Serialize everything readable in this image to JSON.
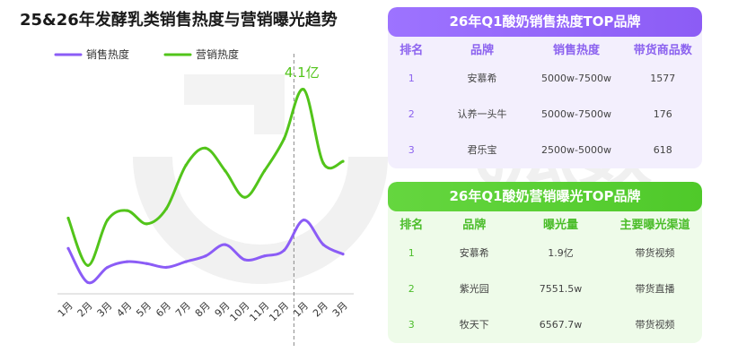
{
  "chart_data": {
    "type": "line",
    "title": "25&26年发酵乳类销售热度与营销曝光趋势",
    "categories": [
      "1月",
      "2月",
      "3月",
      "4月",
      "5月",
      "6月",
      "7月",
      "8月",
      "9月",
      "10月",
      "11月",
      "12月",
      "1月",
      "2月",
      "3月"
    ],
    "series": [
      {
        "name": "销售热度",
        "color": "#8b5cf6",
        "values": [
          24,
          6,
          14,
          17,
          16,
          14,
          17,
          20,
          26,
          18,
          20,
          23,
          39,
          26,
          21
        ]
      },
      {
        "name": "营销热度",
        "color": "#52c41a",
        "values": [
          40,
          15,
          39,
          44,
          37,
          45,
          68,
          77,
          65,
          51,
          65,
          82,
          108,
          69,
          70
        ]
      }
    ],
    "annotation": {
      "text": "4.1亿",
      "series": 1,
      "index": 12
    },
    "divider_after_index": 11,
    "ylim": [
      0,
      125
    ],
    "legend_position": "top-left",
    "grid": false
  },
  "sales_table": {
    "title": "26年Q1酸奶销售热度TOP品牌",
    "headers": [
      "排名",
      "品牌",
      "销售热度",
      "带货商品数"
    ],
    "rows": [
      [
        "1",
        "安慕希",
        "5000w-7500w",
        "1577"
      ],
      [
        "2",
        "认养一头牛",
        "5000w-7500w",
        "176"
      ],
      [
        "3",
        "君乐宝",
        "2500w-5000w",
        "618"
      ]
    ]
  },
  "marketing_table": {
    "title": "26年Q1酸奶营销曝光TOP品牌",
    "headers": [
      "排名",
      "品牌",
      "曝光量",
      "主要曝光渠道"
    ],
    "rows": [
      [
        "1",
        "安慕希",
        "1.9亿",
        "带货视频"
      ],
      [
        "2",
        "紫光园",
        "7551.5w",
        "带货直播"
      ],
      [
        "3",
        "牧天下",
        "6567.7w",
        "带货视频"
      ]
    ]
  },
  "colors": {
    "purple": "#8b5cf6",
    "green": "#52c41a"
  },
  "watermark": "飞瓜数据"
}
